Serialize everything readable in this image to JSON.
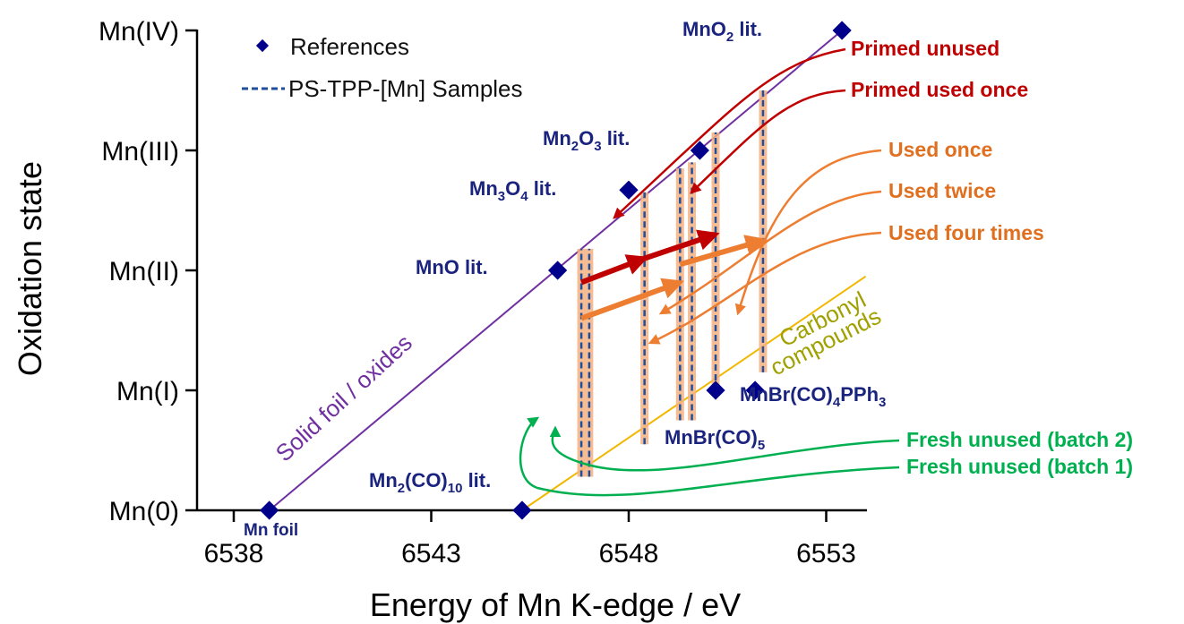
{
  "chart_data": {
    "type": "scatter",
    "xlabel": "Energy of Mn K-edge / eV",
    "ylabel": "Oxidation state",
    "xlim": [
      6537,
      6557
    ],
    "ylim": [
      0,
      4
    ],
    "x_ticks": [
      {
        "value": 6538,
        "label": "6538"
      },
      {
        "value": 6543,
        "label": "6543"
      },
      {
        "value": 6548,
        "label": "6548"
      },
      {
        "value": 6553,
        "label": "6553"
      }
    ],
    "y_ticks": [
      {
        "value": 0,
        "label": "Mn(0)"
      },
      {
        "value": 1,
        "label": "Mn(I)"
      },
      {
        "value": 2,
        "label": "Mn(II)"
      },
      {
        "value": 3,
        "label": "Mn(III)"
      },
      {
        "value": 4,
        "label": "Mn(IV)"
      }
    ],
    "legend": {
      "position": "top-left",
      "references_label": "References",
      "samples_label": "PS-TPP-[Mn] Samples"
    },
    "references": [
      {
        "name": "Mn foil",
        "x": 6538.9,
        "y": 0
      },
      {
        "name": "MnO lit.",
        "x": 6546.2,
        "y": 2
      },
      {
        "name": "Mn3O4 lit.",
        "x": 6548.0,
        "y": 2.67
      },
      {
        "name": "Mn2O3 lit.",
        "x": 6549.8,
        "y": 3
      },
      {
        "name": "MnO2 lit.",
        "x": 6553.4,
        "y": 4
      },
      {
        "name": "Mn2(CO)10 lit.",
        "x": 6545.3,
        "y": 0
      },
      {
        "name": "MnBr(CO)5",
        "x": 6550.2,
        "y": 1
      },
      {
        "name": "MnBr(CO)4PPh3",
        "x": 6551.2,
        "y": 1
      }
    ],
    "reference_labels": {
      "mn_foil": "Mn foil",
      "mno": "MnO lit.",
      "mn3o4_a": "Mn",
      "mn3o4_b": "3",
      "mn3o4_c": "O",
      "mn3o4_d": "4",
      "mn3o4_e": " lit.",
      "mn2o3_a": "Mn",
      "mn2o3_b": "2",
      "mn2o3_c": "O",
      "mn2o3_d": "3",
      "mn2o3_e": " lit.",
      "mno2_a": "MnO",
      "mno2_b": "2",
      "mno2_c": " lit.",
      "mn2co10_a": "Mn",
      "mn2co10_b": "2",
      "mn2co10_c": "(CO)",
      "mn2co10_d": "10",
      "mn2co10_e": " lit.",
      "mnbrco5_a": "MnBr(CO)",
      "mnbrco5_b": "5",
      "mnbrco4_a": "MnBr(CO)",
      "mnbrco4_b": "4",
      "mnbrco4_c": "PPh",
      "mnbrco4_d": "3"
    },
    "trend_lines": [
      {
        "name": "Solid foil / oxides",
        "from": [
          6538.9,
          0
        ],
        "to": [
          6553.4,
          4
        ],
        "color": "#7030a0"
      },
      {
        "name": "Carbonyl compounds",
        "from": [
          6545.3,
          0
        ],
        "to": [
          6554.0,
          1.95
        ],
        "color": "#f2b800"
      }
    ],
    "trend_line_labels": {
      "oxides": "Solid foil / oxides",
      "carbonyl_1": "Carbonyl",
      "carbonyl_2": "compounds"
    },
    "samples": [
      {
        "name": "Fresh unused (batch 2)",
        "x": 6546.8,
        "y_range": [
          0.28,
          2.18
        ],
        "color": "#00b050"
      },
      {
        "name": "Fresh unused (batch 1)",
        "x": 6547.0,
        "y_range": [
          0.28,
          2.18
        ],
        "color": "#00b050"
      },
      {
        "name": "Used four times",
        "x": 6548.4,
        "y_range": [
          0.55,
          2.65
        ],
        "color": "#ed7d31"
      },
      {
        "name": "Used twice",
        "x": 6549.3,
        "y_range": [
          0.75,
          2.85
        ],
        "color": "#ed7d31"
      },
      {
        "name": "Used once",
        "x": 6549.6,
        "y_range": [
          0.75,
          2.9
        ],
        "color": "#ed7d31"
      },
      {
        "name": "Primed unused",
        "x": 6550.2,
        "y_range": [
          1.0,
          3.15
        ],
        "color": "#c00000"
      },
      {
        "name": "Primed used once",
        "x": 6551.4,
        "y_range": [
          1.15,
          3.5
        ],
        "color": "#c00000"
      }
    ],
    "annotations": [
      {
        "text": "Primed unused",
        "color": "#c00000"
      },
      {
        "text": "Primed used once",
        "color": "#c00000"
      },
      {
        "text": "Used once",
        "color": "#e07020"
      },
      {
        "text": "Used twice",
        "color": "#e07020"
      },
      {
        "text": "Used four times",
        "color": "#e07020"
      },
      {
        "text": "Fresh unused (batch 2)",
        "color": "#00b050"
      },
      {
        "text": "Fresh unused (batch 1)",
        "color": "#00b050"
      }
    ],
    "progress_arrows": [
      {
        "from": [
          6546.8,
          1.9
        ],
        "to": [
          6548.4,
          2.1
        ],
        "color": "#c00000"
      },
      {
        "from": [
          6548.4,
          2.1
        ],
        "to": [
          6550.2,
          2.3
        ],
        "color": "#c00000"
      },
      {
        "from": [
          6546.8,
          1.6
        ],
        "to": [
          6549.3,
          1.9
        ],
        "color": "#ed7d31"
      },
      {
        "from": [
          6549.3,
          2.05
        ],
        "to": [
          6551.4,
          2.25
        ],
        "color": "#ed7d31"
      }
    ],
    "colors": {
      "marker": "#00008b",
      "oxide_line": "#7030a0",
      "carbonyl_line": "#f2b800",
      "sample_dash": "#1f4e9c",
      "sample_band": "#f4b183",
      "primed": "#c00000",
      "used": "#ed7d31",
      "fresh": "#00b050"
    }
  }
}
